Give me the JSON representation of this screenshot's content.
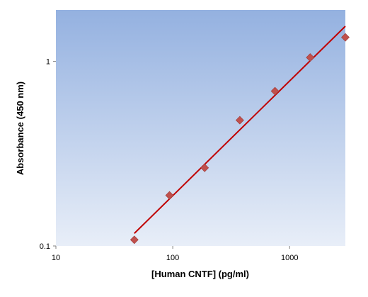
{
  "chart_data": {
    "type": "scatter",
    "xlabel": "[Human CNTF] (pg/ml)",
    "ylabel": "Absorbance (450 nm)",
    "x_scale": "log",
    "y_scale": "log",
    "xlim": [
      10,
      3000
    ],
    "ylim": [
      0.1,
      1.9
    ],
    "x_ticks": [
      10,
      100,
      1000
    ],
    "x_tick_labels": [
      "10",
      "100",
      "1000"
    ],
    "y_ticks": [
      0.1,
      1
    ],
    "y_tick_labels": [
      "0.1",
      "1"
    ],
    "grid": false,
    "legend": "none",
    "series": [
      {
        "x": [
          46.9,
          93.8,
          187.5,
          375,
          750,
          1500,
          3000
        ],
        "y": [
          0.108,
          0.188,
          0.265,
          0.48,
          0.69,
          1.05,
          1.35
        ],
        "marker": "diamond",
        "color": "#c0504d"
      }
    ],
    "fit_line": {
      "x": [
        46.9,
        3000
      ],
      "y": [
        0.117,
        1.55
      ],
      "color": "#c00000"
    },
    "plot_background": {
      "top_color": "#94b1e0",
      "bottom_color": "#e8eef8"
    }
  }
}
